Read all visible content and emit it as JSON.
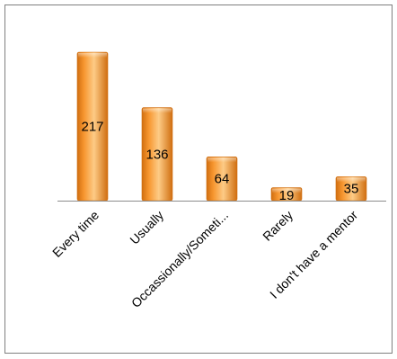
{
  "chart_data": {
    "type": "bar",
    "title": "",
    "xlabel": "",
    "ylabel": "",
    "categories": [
      "Every time",
      "Usually",
      "Occassionally/Someti...",
      "Rarely",
      "I don't have a mentor"
    ],
    "values": [
      217,
      136,
      64,
      19,
      35
    ],
    "ylim": [
      0,
      217
    ],
    "grid": false,
    "legend": "none",
    "colors": {
      "bar_light": "#fdcb86",
      "bar_mid": "#f7962f",
      "bar_dark": "#d06e10",
      "axis": "#8c8c8c",
      "frame": "#7f7f7f"
    }
  }
}
